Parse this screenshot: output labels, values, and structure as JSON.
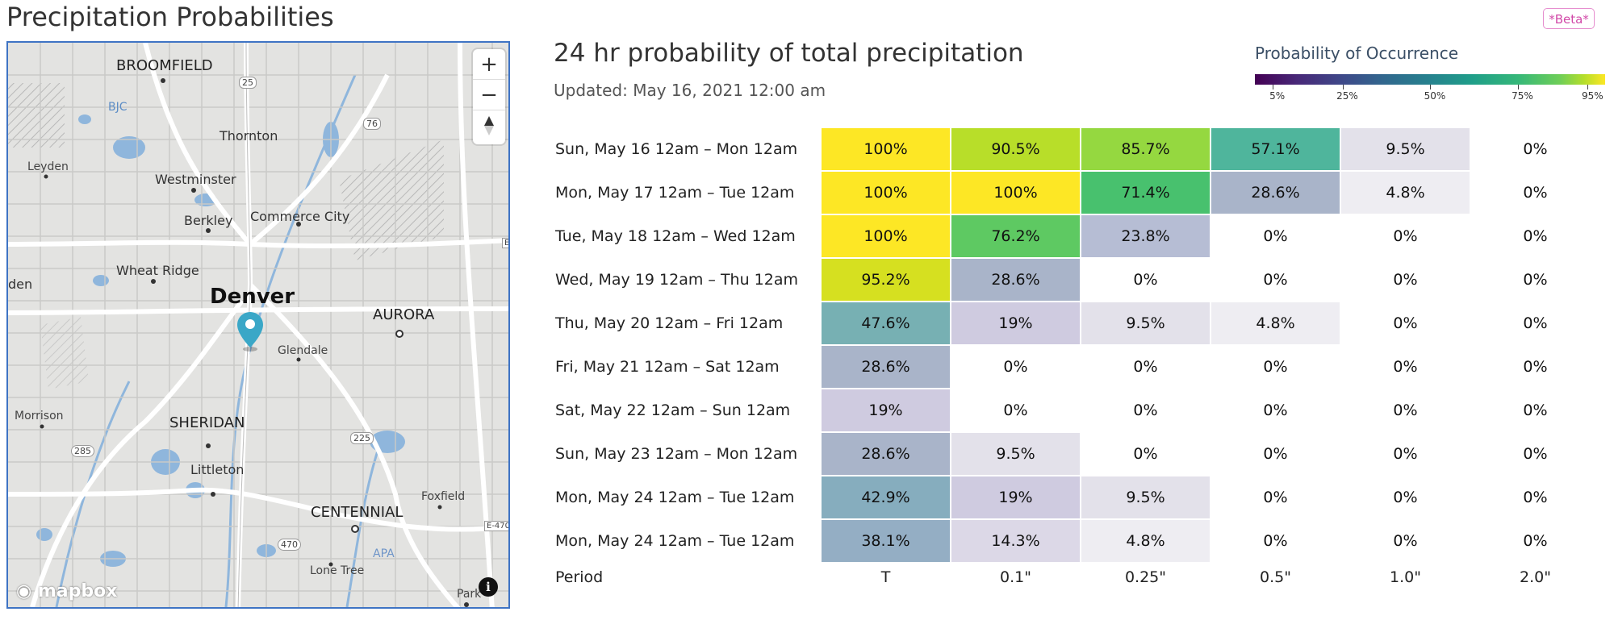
{
  "page": {
    "title": "Precipitation Probabilities",
    "badge": "*Beta*"
  },
  "map": {
    "labels": {
      "broomfield": "BROOMFIELD",
      "bjc": "BJC",
      "thornton": "Thornton",
      "leyden": "Leyden",
      "westminster": "Westminster",
      "berkley": "Berkley",
      "commerce_city": "Commerce City",
      "wheat_ridge": "Wheat Ridge",
      "den": "den",
      "denver": "Denver",
      "aurora": "AURORA",
      "glendale": "Glendale",
      "morrison": "Morrison",
      "sheridan": "SHERIDAN",
      "littleton": "Littleton",
      "centennial": "CENTENNIAL",
      "foxfield": "Foxfield",
      "lone_tree": "Lone Tree",
      "apa": "APA",
      "parker": "Park",
      "e": "E",
      "e470": "E-470"
    },
    "shields": {
      "i25": "25",
      "i76": "76",
      "i225": "225",
      "us285": "285",
      "r470": "470"
    },
    "zoom_in": "+",
    "zoom_out": "−",
    "attribution": "mapbox",
    "info": "i"
  },
  "panel": {
    "title": "24 hr probability of total precipitation",
    "updated": "Updated: May 16, 2021 12:00 am"
  },
  "legend": {
    "title": "Probability of Occurrence",
    "ticks": [
      {
        "value": 5,
        "label": "5%"
      },
      {
        "value": 25,
        "label": "25%"
      },
      {
        "value": 50,
        "label": "50%"
      },
      {
        "value": 75,
        "label": "75%"
      },
      {
        "value": 95,
        "label": "95%"
      }
    ]
  },
  "table": {
    "footer": [
      "Period",
      "T",
      "0.1\"",
      "0.25\"",
      "0.5\"",
      "1.0\"",
      "2.0\""
    ],
    "rows": [
      {
        "period": "Sun, May 16 12am – Mon 12am",
        "values": [
          "100%",
          "90.5%",
          "85.7%",
          "57.1%",
          "9.5%",
          "0%"
        ],
        "colors": [
          "#fde725",
          "#b8de29",
          "#95d840",
          "#4fb59c",
          "#e3e1ea",
          ""
        ]
      },
      {
        "period": "Mon, May 17 12am – Tue 12am",
        "values": [
          "100%",
          "100%",
          "71.4%",
          "28.6%",
          "4.8%",
          "0%"
        ],
        "colors": [
          "#fde725",
          "#fde725",
          "#48c16e",
          "#a9b4c9",
          "#eeedf2",
          ""
        ]
      },
      {
        "period": "Tue, May 18 12am – Wed 12am",
        "values": [
          "100%",
          "76.2%",
          "23.8%",
          "0%",
          "0%",
          "0%"
        ],
        "colors": [
          "#fde725",
          "#5ec962",
          "#b6bdd4",
          "",
          "",
          ""
        ]
      },
      {
        "period": "Wed, May 19 12am – Thu 12am",
        "values": [
          "95.2%",
          "28.6%",
          "0%",
          "0%",
          "0%",
          "0%"
        ],
        "colors": [
          "#d6e020",
          "#a9b4c9",
          "",
          "",
          "",
          ""
        ]
      },
      {
        "period": "Thu, May 20 12am – Fri 12am",
        "values": [
          "47.6%",
          "19%",
          "9.5%",
          "4.8%",
          "0%",
          "0%"
        ],
        "colors": [
          "#77b0b3",
          "#cfcbe0",
          "#e3e1ea",
          "#eeedf2",
          "",
          ""
        ]
      },
      {
        "period": "Fri, May 21 12am – Sat 12am",
        "values": [
          "28.6%",
          "0%",
          "0%",
          "0%",
          "0%",
          "0%"
        ],
        "colors": [
          "#a9b4c9",
          "",
          "",
          "",
          "",
          ""
        ]
      },
      {
        "period": "Sat, May 22 12am – Sun 12am",
        "values": [
          "19%",
          "0%",
          "0%",
          "0%",
          "0%",
          "0%"
        ],
        "colors": [
          "#cfcbe0",
          "",
          "",
          "",
          "",
          ""
        ]
      },
      {
        "period": "Sun, May 23 12am – Mon 12am",
        "values": [
          "28.6%",
          "9.5%",
          "0%",
          "0%",
          "0%",
          "0%"
        ],
        "colors": [
          "#a9b4c9",
          "#e3e1ea",
          "",
          "",
          "",
          ""
        ]
      },
      {
        "period": "Mon, May 24 12am – Tue 12am",
        "values": [
          "42.9%",
          "19%",
          "9.5%",
          "0%",
          "0%",
          "0%"
        ],
        "colors": [
          "#86adbe",
          "#cfcbe0",
          "#e3e1ea",
          "",
          "",
          ""
        ]
      },
      {
        "period": "Mon, May 24 12am – Tue 12am",
        "values": [
          "38.1%",
          "14.3%",
          "4.8%",
          "0%",
          "0%",
          "0%"
        ],
        "colors": [
          "#94aec4",
          "#dcd8e7",
          "#eeedf2",
          "",
          "",
          ""
        ]
      }
    ]
  }
}
